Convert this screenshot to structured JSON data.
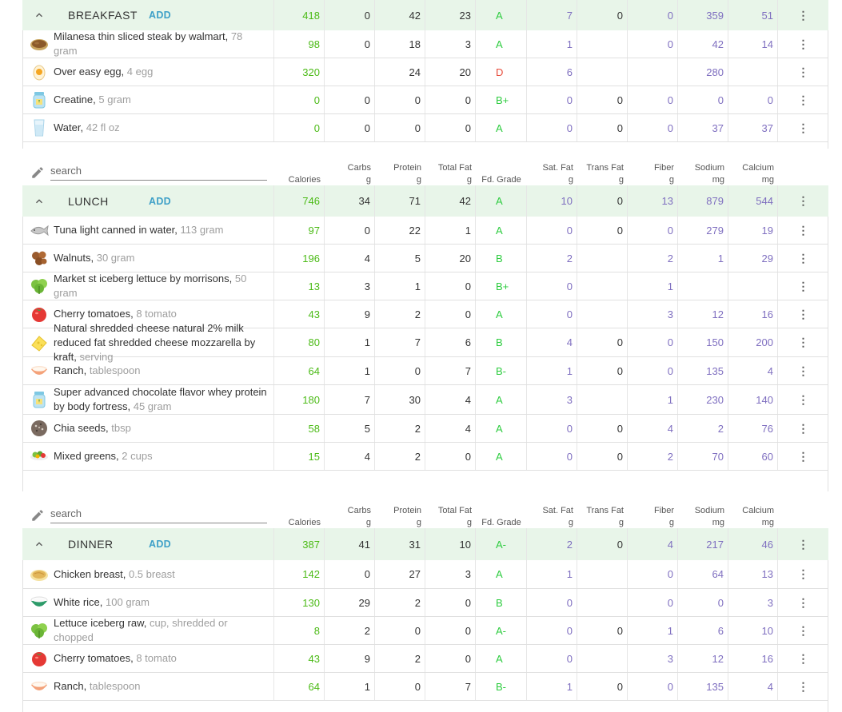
{
  "headers": {
    "search_placeholder": "search",
    "calories": "Calories",
    "carbs": [
      "Carbs",
      "g"
    ],
    "protein": [
      "Protein",
      "g"
    ],
    "total_fat": [
      "Total Fat",
      "g"
    ],
    "grade": "Fd. Grade",
    "sat_fat": [
      "Sat. Fat",
      "g"
    ],
    "trans_fat": [
      "Trans Fat",
      "g"
    ],
    "fiber": [
      "Fiber",
      "g"
    ],
    "sodium": [
      "Sodium",
      "mg"
    ],
    "calcium": [
      "Calcium",
      "mg"
    ]
  },
  "menu_glyph": "⋮",
  "add_label": "ADD",
  "meals": [
    {
      "title": "BREAKFAST",
      "totals": {
        "cal": "418",
        "carbs": "0",
        "protein": "42",
        "fat": "23",
        "grade": "A",
        "sat": "7",
        "trans": "0",
        "fiber": "0",
        "sodium": "359",
        "calcium": "51"
      },
      "items": [
        {
          "name": "Milanesa thin sliced steak by walmart",
          "amount": "78 gram",
          "icon": "steak-icon",
          "cal": "98",
          "carbs": "0",
          "protein": "18",
          "fat": "3",
          "grade": "A",
          "sat": "1",
          "trans": "",
          "fiber": "0",
          "sodium": "42",
          "calcium": "14"
        },
        {
          "name": "Over easy egg",
          "amount": "4 egg",
          "icon": "egg-icon",
          "cal": "320",
          "carbs": "",
          "protein": "24",
          "fat": "20",
          "grade": "D",
          "sat": "6",
          "trans": "",
          "fiber": "",
          "sodium": "280",
          "calcium": ""
        },
        {
          "name": "Creatine",
          "amount": "5 gram",
          "icon": "supplement-jar-icon",
          "cal": "0",
          "carbs": "0",
          "protein": "0",
          "fat": "0",
          "grade": "B+",
          "sat": "0",
          "trans": "0",
          "fiber": "0",
          "sodium": "0",
          "calcium": "0"
        },
        {
          "name": "Water",
          "amount": "42 fl oz",
          "icon": "water-glass-icon",
          "cal": "0",
          "carbs": "0",
          "protein": "0",
          "fat": "0",
          "grade": "A",
          "sat": "0",
          "trans": "0",
          "fiber": "0",
          "sodium": "37",
          "calcium": "37"
        }
      ]
    },
    {
      "title": "LUNCH",
      "totals": {
        "cal": "746",
        "carbs": "34",
        "protein": "71",
        "fat": "42",
        "grade": "A",
        "sat": "10",
        "trans": "0",
        "fiber": "13",
        "sodium": "879",
        "calcium": "544"
      },
      "items": [
        {
          "name": "Tuna light canned in water",
          "amount": "113 gram",
          "icon": "fish-icon",
          "cal": "97",
          "carbs": "0",
          "protein": "22",
          "fat": "1",
          "grade": "A",
          "sat": "0",
          "trans": "0",
          "fiber": "0",
          "sodium": "279",
          "calcium": "19"
        },
        {
          "name": "Walnuts",
          "amount": "30 gram",
          "icon": "walnuts-icon",
          "cal": "196",
          "carbs": "4",
          "protein": "5",
          "fat": "20",
          "grade": "B",
          "sat": "2",
          "trans": "",
          "fiber": "2",
          "sodium": "1",
          "calcium": "29"
        },
        {
          "name": "Market st iceberg lettuce by morrisons",
          "amount": "50 gram",
          "icon": "lettuce-icon",
          "cal": "13",
          "carbs": "3",
          "protein": "1",
          "fat": "0",
          "grade": "B+",
          "sat": "0",
          "trans": "",
          "fiber": "1",
          "sodium": "",
          "calcium": ""
        },
        {
          "name": "Cherry tomatoes",
          "amount": "8 tomato",
          "icon": "tomato-icon",
          "cal": "43",
          "carbs": "9",
          "protein": "2",
          "fat": "0",
          "grade": "A",
          "sat": "0",
          "trans": "",
          "fiber": "3",
          "sodium": "12",
          "calcium": "16"
        },
        {
          "name": "Natural shredded cheese natural 2% milk reduced fat shredded cheese mozzarella by kraft",
          "amount": "serving",
          "icon": "cheese-icon",
          "cal": "80",
          "carbs": "1",
          "protein": "7",
          "fat": "6",
          "grade": "B",
          "sat": "4",
          "trans": "0",
          "fiber": "0",
          "sodium": "150",
          "calcium": "200"
        },
        {
          "name": "Ranch",
          "amount": "tablespoon",
          "icon": "bowl-icon",
          "cal": "64",
          "carbs": "1",
          "protein": "0",
          "fat": "7",
          "grade": "B-",
          "sat": "1",
          "trans": "0",
          "fiber": "0",
          "sodium": "135",
          "calcium": "4"
        },
        {
          "name": "Super advanced chocolate flavor whey protein by body fortress",
          "amount": "45 gram",
          "icon": "supplement-jar-icon",
          "cal": "180",
          "carbs": "7",
          "protein": "30",
          "fat": "4",
          "grade": "A",
          "sat": "3",
          "trans": "",
          "fiber": "1",
          "sodium": "230",
          "calcium": "140"
        },
        {
          "name": "Chia seeds",
          "amount": "tbsp",
          "icon": "seeds-icon",
          "cal": "58",
          "carbs": "5",
          "protein": "2",
          "fat": "4",
          "grade": "A",
          "sat": "0",
          "trans": "0",
          "fiber": "4",
          "sodium": "2",
          "calcium": "76"
        },
        {
          "name": "Mixed greens",
          "amount": "2 cups",
          "icon": "salad-icon",
          "cal": "15",
          "carbs": "4",
          "protein": "2",
          "fat": "0",
          "grade": "A",
          "sat": "0",
          "trans": "0",
          "fiber": "2",
          "sodium": "70",
          "calcium": "60"
        }
      ]
    },
    {
      "title": "DINNER",
      "totals": {
        "cal": "387",
        "carbs": "41",
        "protein": "31",
        "fat": "10",
        "grade": "A-",
        "sat": "2",
        "trans": "0",
        "fiber": "4",
        "sodium": "217",
        "calcium": "46"
      },
      "items": [
        {
          "name": "Chicken breast",
          "amount": "0.5 breast",
          "icon": "chicken-icon",
          "cal": "142",
          "carbs": "0",
          "protein": "27",
          "fat": "3",
          "grade": "A",
          "sat": "1",
          "trans": "",
          "fiber": "0",
          "sodium": "64",
          "calcium": "13"
        },
        {
          "name": "White rice",
          "amount": "100 gram",
          "icon": "rice-bowl-icon",
          "cal": "130",
          "carbs": "29",
          "protein": "2",
          "fat": "0",
          "grade": "B",
          "sat": "0",
          "trans": "",
          "fiber": "0",
          "sodium": "0",
          "calcium": "3"
        },
        {
          "name": "Lettuce iceberg raw",
          "amount": "cup, shredded or chopped",
          "icon": "lettuce-icon",
          "cal": "8",
          "carbs": "2",
          "protein": "0",
          "fat": "0",
          "grade": "A-",
          "sat": "0",
          "trans": "0",
          "fiber": "1",
          "sodium": "6",
          "calcium": "10"
        },
        {
          "name": "Cherry tomatoes",
          "amount": "8 tomato",
          "icon": "tomato-icon",
          "cal": "43",
          "carbs": "9",
          "protein": "2",
          "fat": "0",
          "grade": "A",
          "sat": "0",
          "trans": "",
          "fiber": "3",
          "sodium": "12",
          "calcium": "16"
        },
        {
          "name": "Ranch",
          "amount": "tablespoon",
          "icon": "bowl-icon",
          "cal": "64",
          "carbs": "1",
          "protein": "0",
          "fat": "7",
          "grade": "B-",
          "sat": "1",
          "trans": "0",
          "fiber": "0",
          "sodium": "135",
          "calcium": "4"
        }
      ]
    }
  ]
}
